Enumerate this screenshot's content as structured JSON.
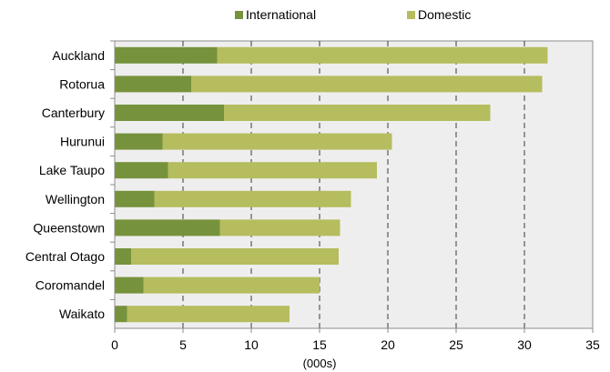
{
  "chart_data": {
    "type": "bar",
    "orientation": "horizontal",
    "stacked": true,
    "categories": [
      "Auckland",
      "Rotorua",
      "Canterbury",
      "Hurunui",
      "Lake Taupo",
      "Wellington",
      "Queenstown",
      "Central Otago",
      "Coromandel",
      "Waikato"
    ],
    "series": [
      {
        "name": "International",
        "color": "#76923c",
        "values": [
          7.5,
          5.6,
          8.0,
          3.5,
          3.9,
          2.9,
          7.7,
          1.2,
          2.1,
          0.9
        ]
      },
      {
        "name": "Domestic",
        "color": "#b5bd5e",
        "values": [
          24.2,
          25.7,
          19.5,
          16.8,
          15.3,
          14.4,
          8.8,
          15.2,
          12.9,
          11.9
        ]
      }
    ],
    "xlabel": "(000s)",
    "ylabel": "",
    "xlim": [
      0,
      35
    ],
    "xticks": [
      0,
      5,
      10,
      15,
      20,
      25,
      30,
      35
    ],
    "grid": "vertical dashed",
    "legend_position": "top",
    "plot_background": "#efeeee"
  }
}
